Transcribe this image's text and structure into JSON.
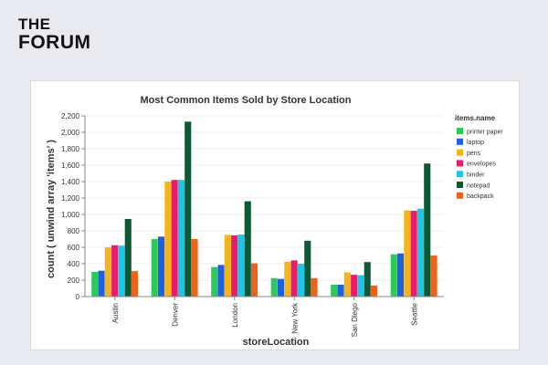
{
  "brand": {
    "line1": "THE",
    "line2": "FORUM"
  },
  "chart_data": {
    "type": "bar",
    "title": "Most Common Items Sold by Store Location",
    "xlabel": "storeLocation",
    "ylabel": "count ( unwind array 'items' )",
    "categories": [
      "Austin",
      "Denver",
      "London",
      "New York",
      "San Diego",
      "Seattle"
    ],
    "ylim": [
      0,
      2200
    ],
    "yticks": [
      0,
      200,
      400,
      600,
      800,
      1000,
      1200,
      1400,
      1600,
      1800,
      2000,
      2200
    ],
    "ytick_labels": [
      "0",
      "200",
      "400",
      "600",
      "800",
      "1,000",
      "1,200",
      "1,400",
      "1,600",
      "1,800",
      "2,000",
      "2,200"
    ],
    "grid": true,
    "legend_title": "items.name",
    "legend_position": "right",
    "series": [
      {
        "name": "printer paper",
        "color": "#2ec95c",
        "values": [
          300,
          700,
          360,
          225,
          145,
          515
        ]
      },
      {
        "name": "laptop",
        "color": "#1f5fe0",
        "values": [
          315,
          730,
          385,
          215,
          145,
          525
        ]
      },
      {
        "name": "pens",
        "color": "#f2b51c",
        "values": [
          600,
          1400,
          750,
          425,
          295,
          1050
        ]
      },
      {
        "name": "envelopes",
        "color": "#ea1b6b",
        "values": [
          625,
          1420,
          745,
          440,
          265,
          1045
        ]
      },
      {
        "name": "binder",
        "color": "#1cc6e6",
        "values": [
          620,
          1420,
          755,
          400,
          260,
          1070
        ]
      },
      {
        "name": "notepad",
        "color": "#0b5a35",
        "values": [
          945,
          2130,
          1160,
          680,
          420,
          1620
        ]
      },
      {
        "name": "backpack",
        "color": "#f0621a",
        "values": [
          310,
          700,
          405,
          225,
          135,
          500
        ]
      }
    ]
  }
}
